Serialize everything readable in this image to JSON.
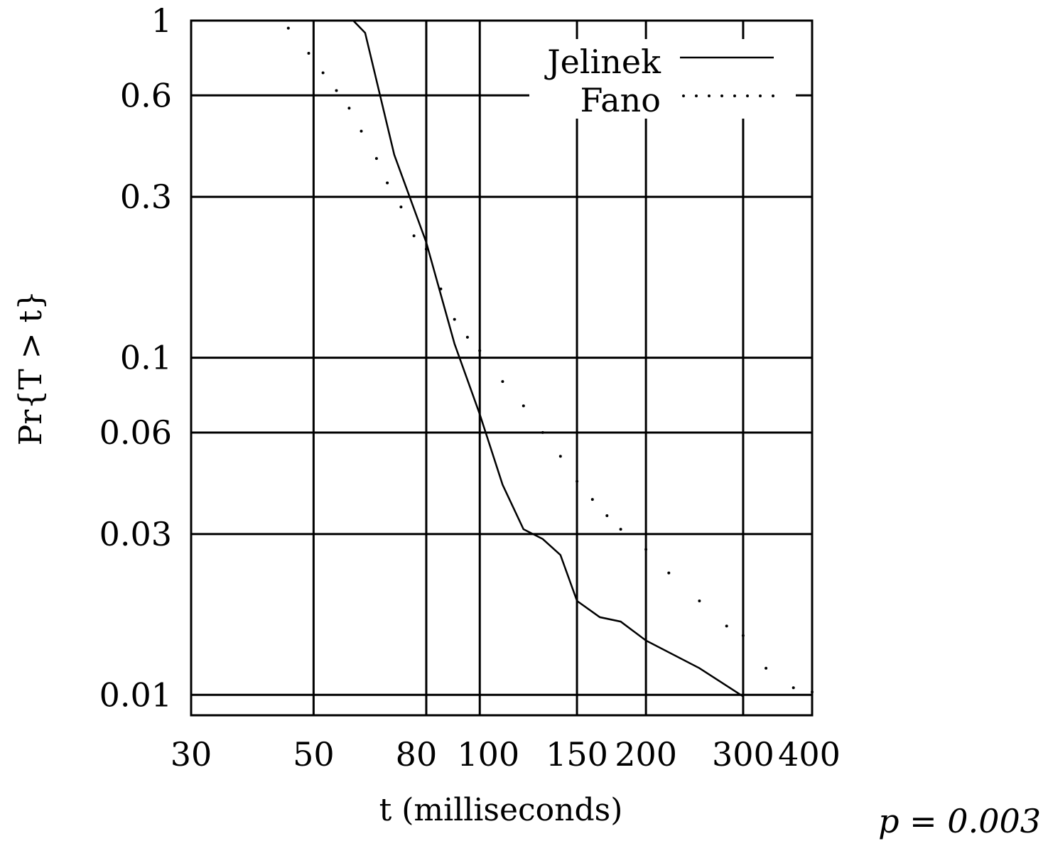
{
  "chart_data": {
    "type": "line",
    "xscale": "log",
    "yscale": "log",
    "xlabel": "t (milliseconds)",
    "ylabel": "Pr{T > t}",
    "xlim": [
      30,
      400
    ],
    "ylim": [
      0.0087,
      1
    ],
    "grid": true,
    "legend_position": "top-right",
    "xticks": [
      30,
      50,
      80,
      100,
      150,
      200,
      300,
      400
    ],
    "xtick_labels": [
      "30",
      "50",
      "80",
      "100",
      "150",
      "200",
      "300",
      "400"
    ],
    "yticks": [
      1,
      0.6,
      0.3,
      0.1,
      0.06,
      0.03,
      0.01
    ],
    "ytick_labels": [
      "1",
      "0.6",
      "0.3",
      "0.1",
      "0.06",
      "0.03",
      "0.01"
    ],
    "annotation": "p = 0.003",
    "series": [
      {
        "name": "Jelinek",
        "style": "solid",
        "points": [
          [
            59,
            1.0
          ],
          [
            62,
            0.92
          ],
          [
            70,
            0.4
          ],
          [
            80,
            0.22
          ],
          [
            90,
            0.11
          ],
          [
            100,
            0.068
          ],
          [
            110,
            0.042
          ],
          [
            120,
            0.031
          ],
          [
            130,
            0.029
          ],
          [
            140,
            0.026
          ],
          [
            150,
            0.019
          ],
          [
            165,
            0.017
          ],
          [
            180,
            0.0165
          ],
          [
            200,
            0.0145
          ],
          [
            250,
            0.012
          ],
          [
            300,
            0.0099
          ]
        ]
      },
      {
        "name": "Fano",
        "style": "dotted",
        "points": [
          [
            45,
            0.95
          ],
          [
            49,
            0.8
          ],
          [
            52,
            0.7
          ],
          [
            55,
            0.62
          ],
          [
            58,
            0.55
          ],
          [
            61,
            0.47
          ],
          [
            65,
            0.39
          ],
          [
            68,
            0.33
          ],
          [
            72,
            0.28
          ],
          [
            76,
            0.23
          ],
          [
            80,
            0.21
          ],
          [
            85,
            0.16
          ],
          [
            90,
            0.13
          ],
          [
            95,
            0.115
          ],
          [
            100,
            0.105
          ],
          [
            110,
            0.085
          ],
          [
            120,
            0.072
          ],
          [
            130,
            0.06
          ],
          [
            140,
            0.051
          ],
          [
            150,
            0.043
          ],
          [
            160,
            0.038
          ],
          [
            170,
            0.034
          ],
          [
            180,
            0.031
          ],
          [
            200,
            0.027
          ],
          [
            220,
            0.023
          ],
          [
            250,
            0.019
          ],
          [
            280,
            0.016
          ],
          [
            300,
            0.015
          ],
          [
            330,
            0.012
          ],
          [
            370,
            0.0105
          ],
          [
            400,
            0.0102
          ]
        ]
      }
    ]
  }
}
